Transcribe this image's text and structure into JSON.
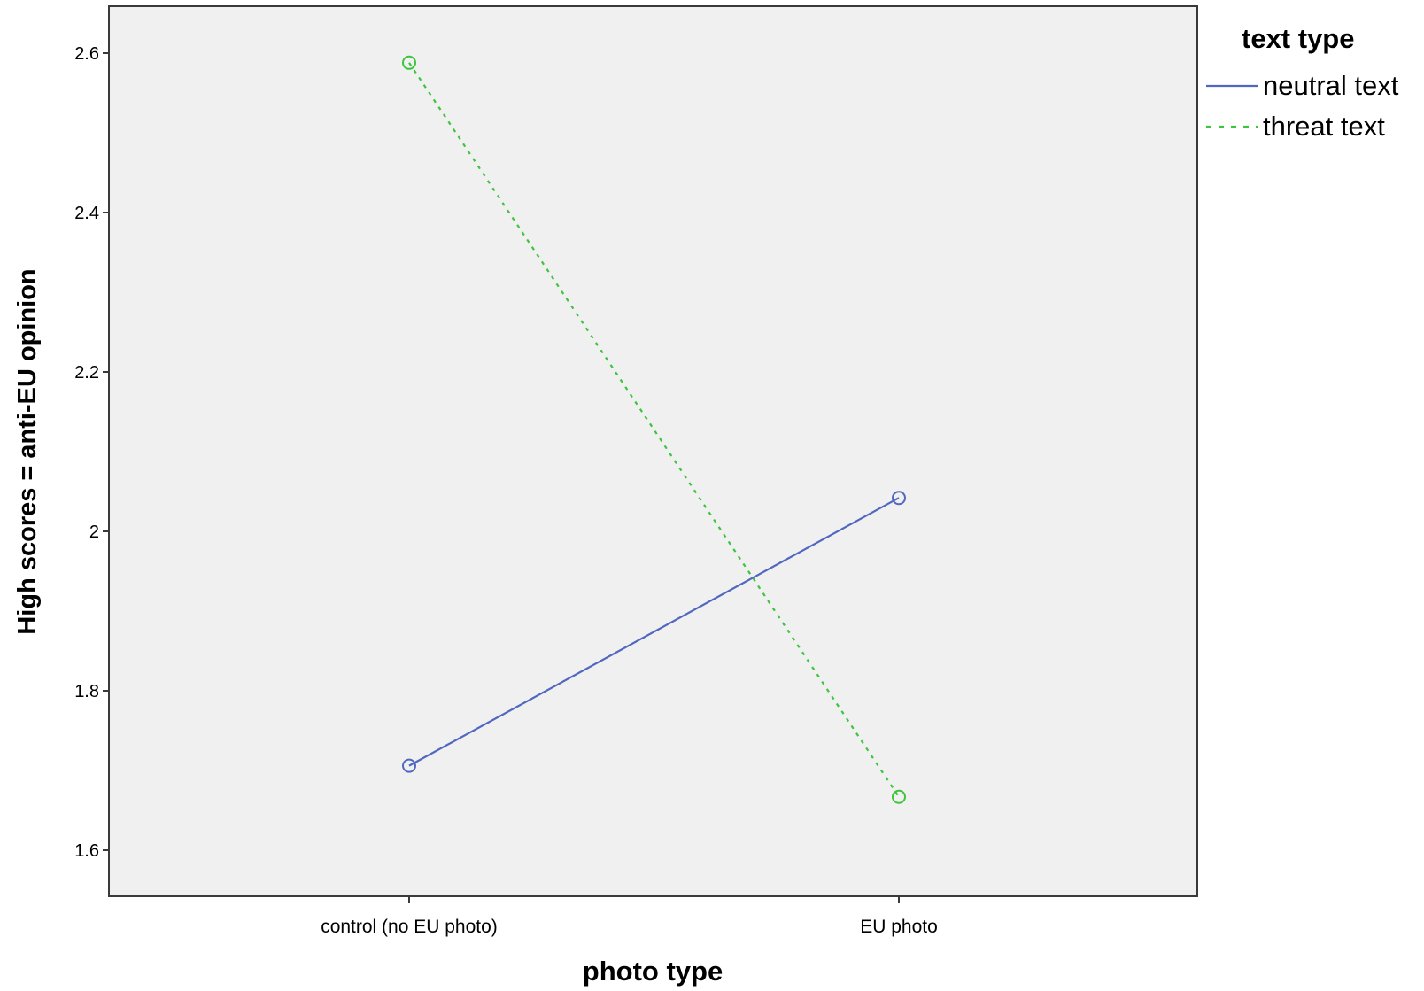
{
  "chart_data": {
    "type": "line",
    "title": "",
    "xlabel": "photo type",
    "ylabel": "High scores = anti-EU opinion",
    "categories": [
      "control (no EU photo)",
      "EU photo"
    ],
    "ylim": [
      1.55,
      2.65
    ],
    "yticks": [
      1.6,
      1.8,
      2.0,
      2.2,
      2.4,
      2.6
    ],
    "ytick_labels": [
      "1.6",
      "1.8",
      "2",
      "2.2",
      "2.4",
      "2.6"
    ],
    "grid": false,
    "legend": {
      "title": "text type",
      "placement": "top-right, outside plot"
    },
    "series": [
      {
        "name": "neutral text",
        "values": [
          1.706,
          2.042
        ],
        "color": "#5068c0",
        "line_style": "solid",
        "marker": "open-circle"
      },
      {
        "name": "threat text",
        "values": [
          2.588,
          1.667
        ],
        "color": "#3ec43e",
        "line_style": "dotted",
        "marker": "open-circle"
      }
    ],
    "plot_background": "#f0f0f0"
  }
}
